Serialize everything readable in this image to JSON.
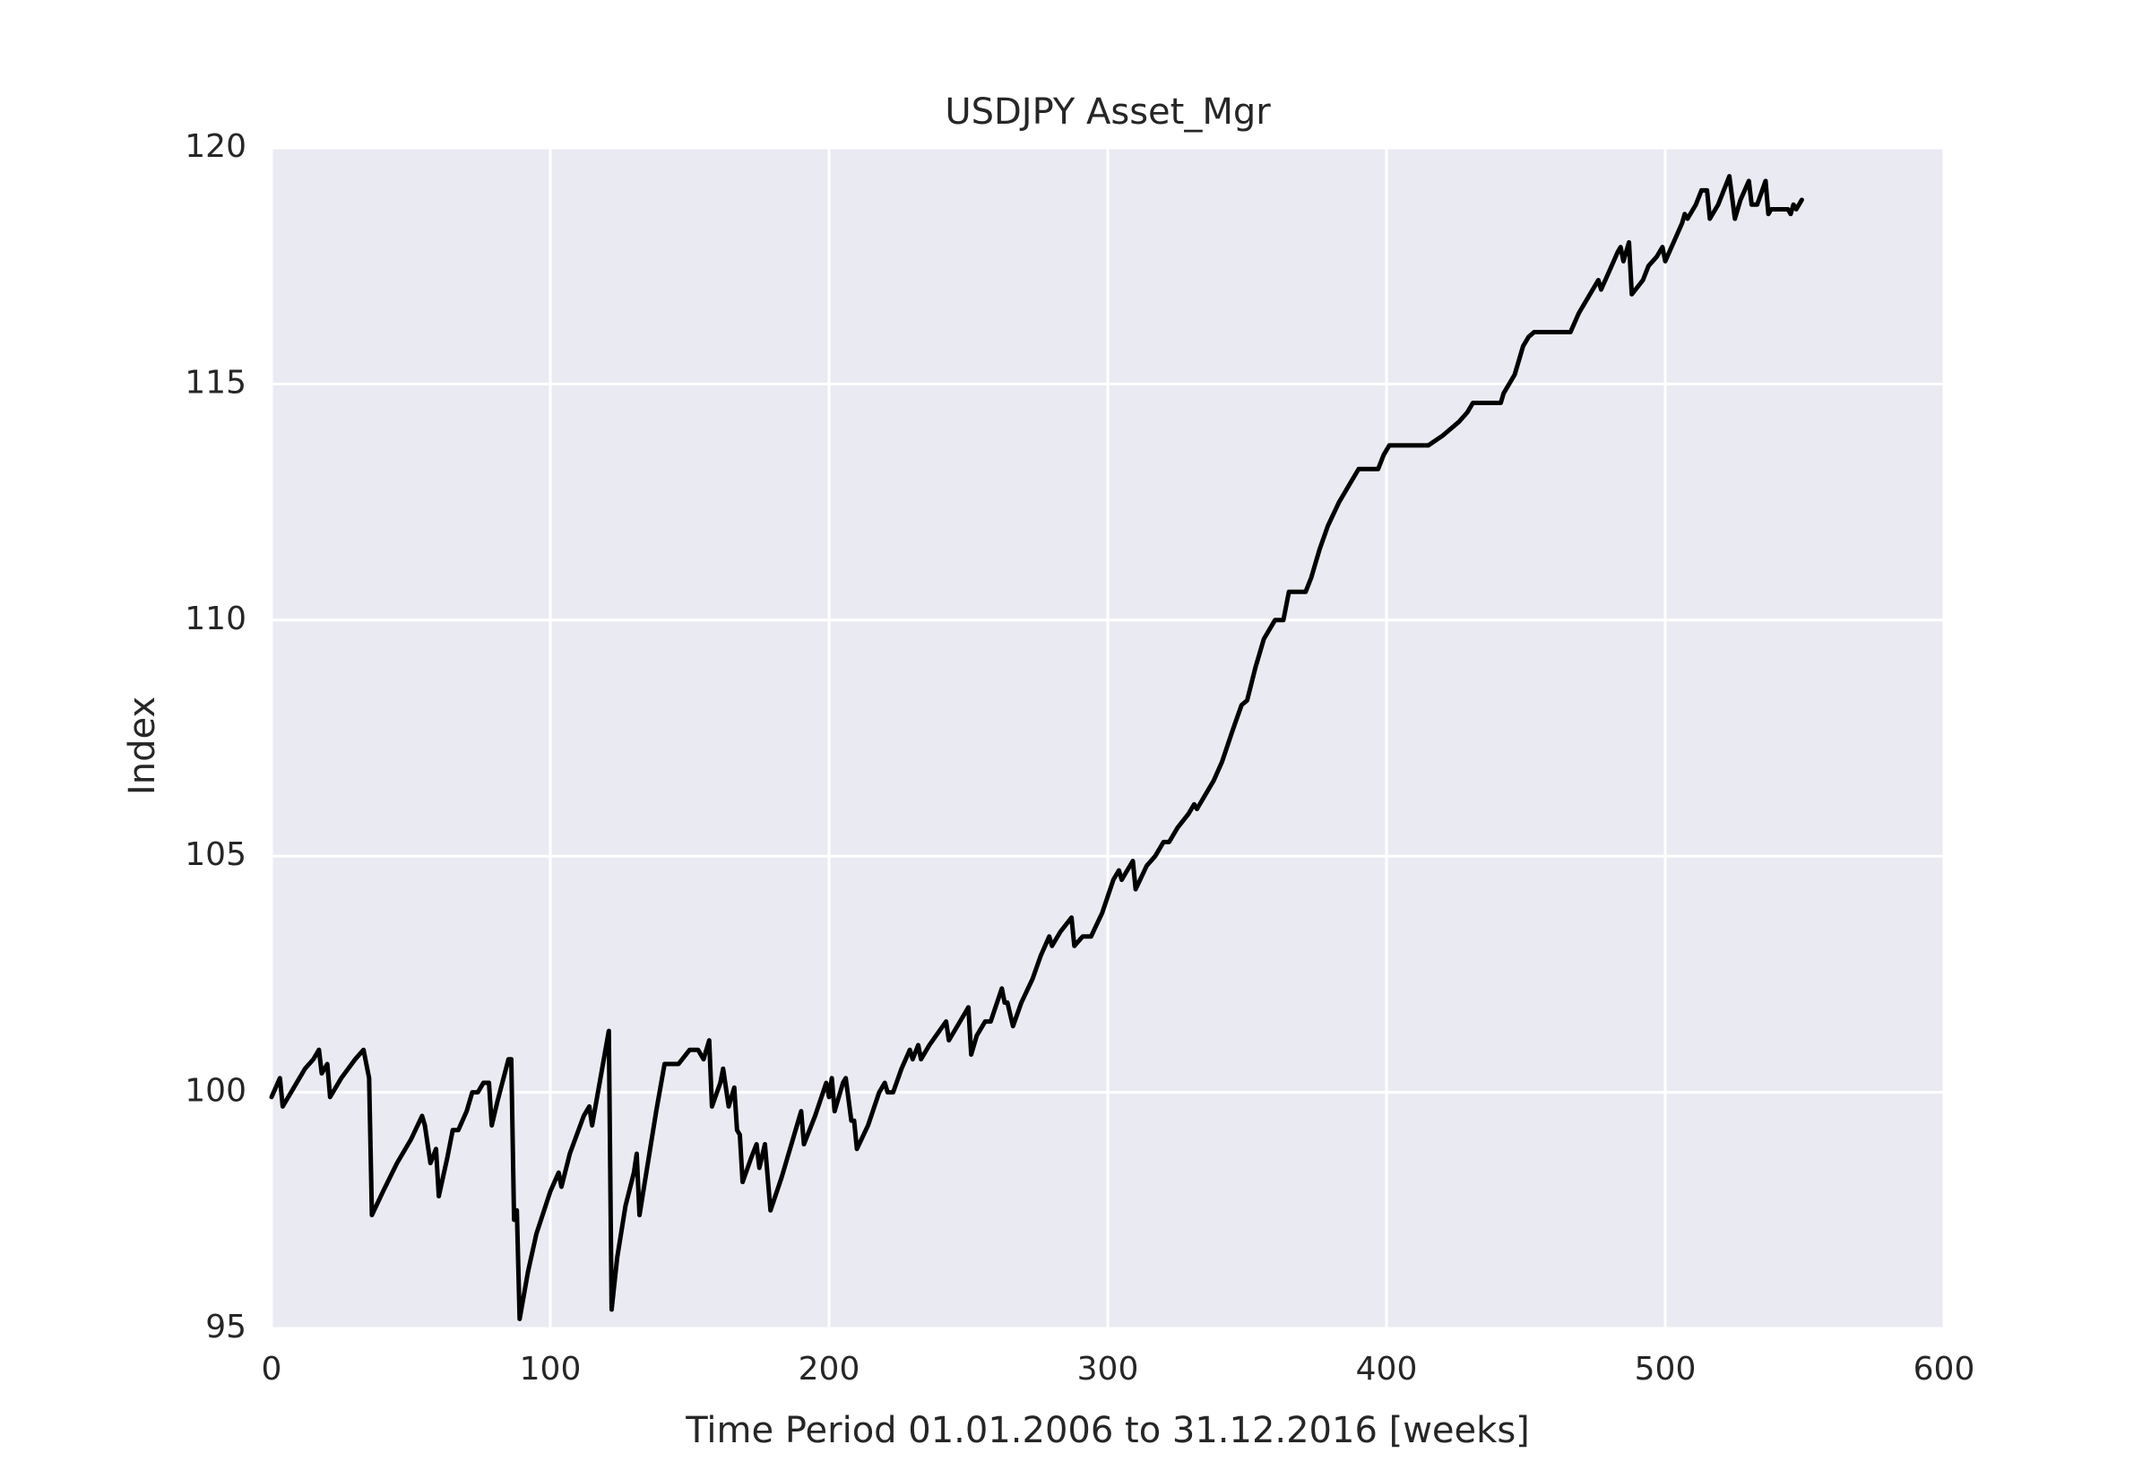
{
  "chart_data": {
    "type": "line",
    "title": "USDJPY Asset_Mgr",
    "xlabel": "Time Period 01.01.2006 to 31.12.2016 [weeks]",
    "ylabel": "Index",
    "xlim": [
      0,
      600
    ],
    "ylim": [
      95,
      120
    ],
    "xticks": [
      0,
      100,
      200,
      300,
      400,
      500,
      600
    ],
    "yticks": [
      95,
      100,
      105,
      110,
      115,
      120
    ],
    "grid": true,
    "background": "#eaeaf2",
    "grid_color": "#ffffff",
    "x": [
      0,
      3,
      4,
      8,
      12,
      15,
      17,
      18,
      20,
      21,
      25,
      30,
      33,
      35,
      36,
      40,
      45,
      50,
      54,
      55,
      57,
      59,
      60,
      63,
      65,
      67,
      70,
      72,
      74,
      76,
      78,
      79,
      81,
      85,
      86,
      87,
      88,
      89,
      92,
      95,
      100,
      103,
      104,
      107,
      112,
      114,
      115,
      118,
      121,
      122,
      124,
      127,
      130,
      131,
      132,
      135,
      138,
      141,
      146,
      150,
      153,
      155,
      157,
      158,
      161,
      162,
      164,
      166,
      167,
      168,
      169,
      172,
      174,
      175,
      177,
      179,
      183,
      190,
      191,
      195,
      199,
      200,
      201,
      202,
      205,
      206,
      208,
      209,
      210,
      214,
      218,
      220,
      221,
      223,
      226,
      229,
      230,
      232,
      233,
      236,
      242,
      243,
      246,
      250,
      251,
      253,
      256,
      258,
      262,
      263,
      264,
      266,
      269,
      273,
      276,
      279,
      280,
      283,
      287,
      288,
      291,
      294,
      298,
      302,
      304,
      305,
      309,
      310,
      314,
      317,
      320,
      322,
      325,
      329,
      331,
      332,
      334,
      338,
      341,
      345,
      348,
      350,
      353,
      356,
      360,
      363,
      365,
      371,
      373,
      376,
      379,
      383,
      387,
      390,
      397,
      399,
      401,
      413,
      415,
      420,
      426,
      429,
      431,
      441,
      442,
      446,
      449,
      451,
      453,
      466,
      469,
      473,
      476,
      477,
      480,
      483,
      484,
      485,
      487,
      488,
      492,
      494,
      497,
      499,
      500,
      503,
      506,
      507,
      508,
      511,
      513,
      515,
      516,
      519,
      523,
      525,
      527,
      530,
      531,
      533,
      536,
      537,
      538,
      544,
      545,
      546,
      547,
      549
    ],
    "series": [
      {
        "color": "#000000",
        "values": [
          99.9,
          100.3,
          99.7,
          100.1,
          100.5,
          100.7,
          100.9,
          100.4,
          100.6,
          99.9,
          100.3,
          100.7,
          100.9,
          100.3,
          97.4,
          97.9,
          98.5,
          99.0,
          99.5,
          99.3,
          98.5,
          98.8,
          97.8,
          98.6,
          99.2,
          99.2,
          99.6,
          100.0,
          100.0,
          100.2,
          100.2,
          99.3,
          99.8,
          100.7,
          100.7,
          97.3,
          97.5,
          95.2,
          96.2,
          97.0,
          97.9,
          98.3,
          98.0,
          98.7,
          99.5,
          99.7,
          99.3,
          100.3,
          101.3,
          95.4,
          96.5,
          97.6,
          98.3,
          98.7,
          97.4,
          98.5,
          99.6,
          100.6,
          100.6,
          100.9,
          100.9,
          100.7,
          101.1,
          99.7,
          100.2,
          100.5,
          99.7,
          100.1,
          99.2,
          99.1,
          98.1,
          98.6,
          98.9,
          98.4,
          98.9,
          97.5,
          98.2,
          99.6,
          98.9,
          99.5,
          100.2,
          99.9,
          100.3,
          99.6,
          100.2,
          100.3,
          99.4,
          99.4,
          98.8,
          99.3,
          100.0,
          100.2,
          100.0,
          100.0,
          100.5,
          100.9,
          100.7,
          101.0,
          100.7,
          101.0,
          101.5,
          101.1,
          101.4,
          101.8,
          100.8,
          101.2,
          101.5,
          101.5,
          102.2,
          101.9,
          101.9,
          101.4,
          101.9,
          102.4,
          102.9,
          103.3,
          103.1,
          103.4,
          103.7,
          103.1,
          103.3,
          103.3,
          103.8,
          104.5,
          104.7,
          104.5,
          104.9,
          104.3,
          104.8,
          105.0,
          105.3,
          105.3,
          105.6,
          105.9,
          106.1,
          106.0,
          106.2,
          106.6,
          107.0,
          107.7,
          108.2,
          108.3,
          109.0,
          109.6,
          110.0,
          110.0,
          110.6,
          110.6,
          110.9,
          111.5,
          112.0,
          112.5,
          112.9,
          113.2,
          113.2,
          113.5,
          113.7,
          113.7,
          113.7,
          113.9,
          114.2,
          114.4,
          114.6,
          114.6,
          114.8,
          115.2,
          115.8,
          116.0,
          116.1,
          116.1,
          116.5,
          116.9,
          117.2,
          117.0,
          117.4,
          117.8,
          117.9,
          117.6,
          118.0,
          116.9,
          117.2,
          117.5,
          117.7,
          117.9,
          117.6,
          118.0,
          118.4,
          118.6,
          118.5,
          118.8,
          119.1,
          119.1,
          118.5,
          118.8,
          119.4,
          118.5,
          118.9,
          119.3,
          118.8,
          118.8,
          119.3,
          118.6,
          118.7,
          118.7,
          118.6,
          118.8,
          118.7,
          118.9
        ]
      }
    ]
  }
}
